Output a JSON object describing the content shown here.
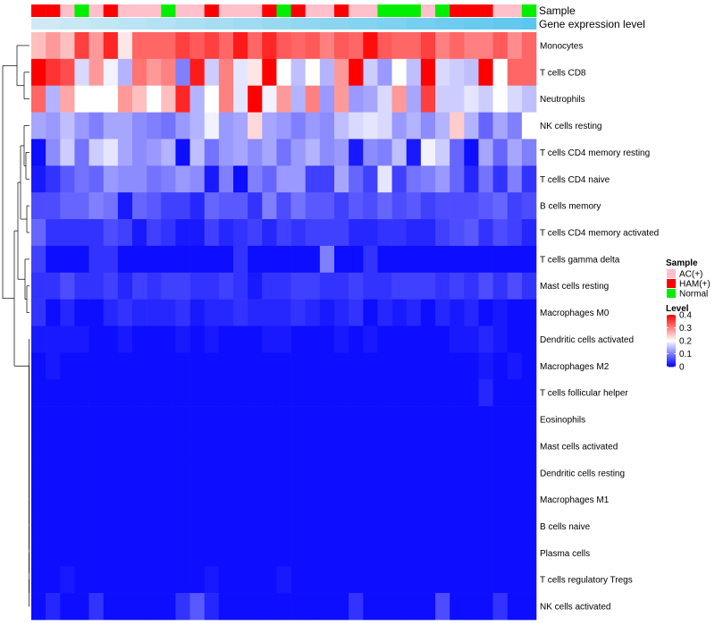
{
  "chart_data": {
    "type": "heatmap",
    "annotation_tracks": [
      "Sample",
      "Gene expression level"
    ],
    "row_labels": [
      "Monocytes",
      "T cells CD8",
      "Neutrophils",
      "NK cells resting",
      "T cells CD4 memory resting",
      "T cells CD4 naive",
      "B cells memory",
      "T cells CD4 memory activated",
      "T cells gamma delta",
      "Mast cells resting",
      "Macrophages M0",
      "Dendritic cells activated",
      "Macrophages M2",
      "T cells follicular helper",
      "Eosinophils",
      "Mast cells activated",
      "Dendritic cells resting",
      "Macrophages M1",
      "B cells naive",
      "Plasma cells",
      "T cells regulatory  Tregs",
      "NK cells activated"
    ],
    "sample_groups": [
      "HAM(+)",
      "HAM(+)",
      "AC(+)",
      "Normal",
      "AC(+)",
      "HAM(+)",
      "AC(+)",
      "AC(+)",
      "AC(+)",
      "Normal",
      "AC(+)",
      "AC(+)",
      "HAM(+)",
      "AC(+)",
      "AC(+)",
      "AC(+)",
      "HAM(+)",
      "Normal",
      "HAM(+)",
      "AC(+)",
      "AC(+)",
      "HAM(+)",
      "AC(+)",
      "AC(+)",
      "Normal",
      "Normal",
      "Normal",
      "AC(+)",
      "Normal",
      "HAM(+)",
      "HAM(+)",
      "HAM(+)",
      "AC(+)",
      "AC(+)",
      "Normal"
    ],
    "gene_expression_level": [
      0.05,
      0.05,
      0.06,
      0.06,
      0.07,
      0.07,
      0.08,
      0.08,
      0.09,
      0.09,
      0.1,
      0.1,
      0.11,
      0.11,
      0.12,
      0.12,
      0.13,
      0.13,
      0.14,
      0.14,
      0.15,
      0.15,
      0.16,
      0.16,
      0.17,
      0.17,
      0.18,
      0.18,
      0.19,
      0.19,
      0.2,
      0.2,
      0.21,
      0.21,
      0.22
    ],
    "values": [
      [
        0.25,
        0.28,
        0.25,
        0.35,
        0.28,
        0.37,
        0.22,
        0.32,
        0.32,
        0.32,
        0.35,
        0.33,
        0.35,
        0.32,
        0.38,
        0.32,
        0.37,
        0.33,
        0.32,
        0.33,
        0.3,
        0.33,
        0.32,
        0.39,
        0.33,
        0.32,
        0.32,
        0.35,
        0.3,
        0.32,
        0.3,
        0.3,
        0.33,
        0.29,
        0.32
      ],
      [
        0.4,
        0.36,
        0.34,
        0.17,
        0.28,
        0.19,
        0.14,
        0.31,
        0.28,
        0.3,
        0.1,
        0.38,
        0.16,
        0.3,
        0.18,
        0.22,
        0.41,
        0.2,
        0.15,
        0.2,
        0.14,
        0.28,
        0.4,
        0.16,
        0.12,
        0.2,
        0.15,
        0.4,
        0.17,
        0.16,
        0.15,
        0.4,
        0.2,
        0.32,
        0.32
      ],
      [
        0.32,
        0.14,
        0.27,
        0.2,
        0.2,
        0.2,
        0.28,
        0.25,
        0.2,
        0.25,
        0.37,
        0.14,
        0.2,
        0.3,
        0.18,
        0.42,
        0.19,
        0.28,
        0.14,
        0.3,
        0.12,
        0.28,
        0.12,
        0.13,
        0.17,
        0.28,
        0.13,
        0.35,
        0.16,
        0.16,
        0.18,
        0.16,
        0.2,
        0.17,
        0.15
      ],
      [
        0.13,
        0.12,
        0.15,
        0.12,
        0.1,
        0.13,
        0.13,
        0.11,
        0.1,
        0.09,
        0.12,
        0.14,
        0.19,
        0.12,
        0.13,
        0.23,
        0.13,
        0.12,
        0.1,
        0.12,
        0.11,
        0.15,
        0.17,
        0.18,
        0.17,
        0.12,
        0.14,
        0.11,
        0.14,
        0.24,
        0.14,
        0.08,
        0.13,
        0.1,
        0.2
      ],
      [
        0.01,
        0.11,
        0.16,
        0.09,
        0.16,
        0.18,
        0.13,
        0.11,
        0.12,
        0.14,
        0.01,
        0.15,
        0.09,
        0.12,
        0.13,
        0.11,
        0.13,
        0.09,
        0.12,
        0.14,
        0.11,
        0.12,
        0.02,
        0.11,
        0.1,
        0.15,
        0.02,
        0.19,
        0.16,
        0.08,
        0.01,
        0.13,
        0.08,
        0.13,
        0.1
      ],
      [
        0.02,
        0.04,
        0.07,
        0.09,
        0.08,
        0.12,
        0.11,
        0.11,
        0.09,
        0.1,
        0.12,
        0.11,
        0.02,
        0.1,
        0.01,
        0.1,
        0.08,
        0.12,
        0.12,
        0.05,
        0.05,
        0.13,
        0.08,
        0.05,
        0.18,
        0.05,
        0.09,
        0.1,
        0.12,
        0.08,
        0.03,
        0.09,
        0.04,
        0.1,
        0.04
      ],
      [
        0.06,
        0.06,
        0.08,
        0.08,
        0.1,
        0.09,
        0.02,
        0.08,
        0.07,
        0.05,
        0.05,
        0.03,
        0.08,
        0.07,
        0.07,
        0.04,
        0.1,
        0.06,
        0.09,
        0.07,
        0.07,
        0.05,
        0.07,
        0.06,
        0.08,
        0.06,
        0.07,
        0.05,
        0.06,
        0.06,
        0.06,
        0.07,
        0.08,
        0.05,
        0.06
      ],
      [
        0.08,
        0.04,
        0.04,
        0.04,
        0.04,
        0.06,
        0.05,
        0.02,
        0.05,
        0.04,
        0.02,
        0.02,
        0.05,
        0.03,
        0.04,
        0.05,
        0.03,
        0.05,
        0.04,
        0.05,
        0.05,
        0.05,
        0.03,
        0.03,
        0.04,
        0.04,
        0.03,
        0.03,
        0.05,
        0.06,
        0.07,
        0.04,
        0.06,
        0.05,
        0.03
      ],
      [
        0.05,
        0.01,
        0.01,
        0.01,
        0.04,
        0.04,
        0.01,
        0.01,
        0.01,
        0.01,
        0.01,
        0.01,
        0.01,
        0.01,
        0.04,
        0.01,
        0.01,
        0.01,
        0.01,
        0.01,
        0.1,
        0.01,
        0.01,
        0.04,
        0.01,
        0.01,
        0.01,
        0.01,
        0.01,
        0.01,
        0.01,
        0.01,
        0.01,
        0.01,
        0.01
      ],
      [
        0.04,
        0.04,
        0.06,
        0.04,
        0.04,
        0.05,
        0.03,
        0.05,
        0.04,
        0.05,
        0.05,
        0.04,
        0.04,
        0.05,
        0.04,
        0.02,
        0.04,
        0.04,
        0.05,
        0.05,
        0.04,
        0.04,
        0.05,
        0.04,
        0.04,
        0.05,
        0.05,
        0.05,
        0.04,
        0.05,
        0.04,
        0.06,
        0.04,
        0.06,
        0.04
      ],
      [
        0.04,
        0.01,
        0.03,
        0.01,
        0.01,
        0.03,
        0.04,
        0.03,
        0.03,
        0.03,
        0.04,
        0.02,
        0.03,
        0.03,
        0.04,
        0.03,
        0.03,
        0.03,
        0.04,
        0.03,
        0.02,
        0.03,
        0.04,
        0.01,
        0.03,
        0.02,
        0.03,
        0.01,
        0.03,
        0.02,
        0.03,
        0.01,
        0.02,
        0.01,
        0.01
      ],
      [
        0.02,
        0.02,
        0.02,
        0.02,
        0.01,
        0.01,
        0.02,
        0.01,
        0.01,
        0.01,
        0.02,
        0.01,
        0.02,
        0.01,
        0.01,
        0.01,
        0.02,
        0.02,
        0.01,
        0.01,
        0.01,
        0.02,
        0.01,
        0.02,
        0.01,
        0.01,
        0.01,
        0.01,
        0.01,
        0.02,
        0.02,
        0.03,
        0.02,
        0.01,
        0.01
      ],
      [
        0.01,
        0.02,
        0.01,
        0.01,
        0.01,
        0.01,
        0.01,
        0.01,
        0.01,
        0.01,
        0.01,
        0.01,
        0.01,
        0.01,
        0.01,
        0.01,
        0.01,
        0.01,
        0.01,
        0.01,
        0.01,
        0.01,
        0.01,
        0.01,
        0.01,
        0.01,
        0.01,
        0.01,
        0.01,
        0.01,
        0.01,
        0.02,
        0.01,
        0.02,
        0.01
      ],
      [
        0.01,
        0.01,
        0.01,
        0.01,
        0.01,
        0.01,
        0.01,
        0.01,
        0.01,
        0.01,
        0.01,
        0.01,
        0.01,
        0.01,
        0.01,
        0.01,
        0.01,
        0.01,
        0.01,
        0.01,
        0.01,
        0.01,
        0.01,
        0.01,
        0.01,
        0.01,
        0.01,
        0.01,
        0.01,
        0.01,
        0.01,
        0.03,
        0.01,
        0.01,
        0.01
      ],
      [
        0.01,
        0.01,
        0.01,
        0.01,
        0.01,
        0.01,
        0.01,
        0.01,
        0.01,
        0.01,
        0.01,
        0.01,
        0.01,
        0.01,
        0.01,
        0.01,
        0.01,
        0.01,
        0.01,
        0.01,
        0.01,
        0.01,
        0.01,
        0.01,
        0.01,
        0.01,
        0.01,
        0.01,
        0.01,
        0.01,
        0.01,
        0.01,
        0.01,
        0.01,
        0.01
      ],
      [
        0.01,
        0.01,
        0.01,
        0.01,
        0.01,
        0.01,
        0.01,
        0.01,
        0.01,
        0.01,
        0.01,
        0.01,
        0.01,
        0.01,
        0.01,
        0.01,
        0.01,
        0.01,
        0.01,
        0.01,
        0.01,
        0.01,
        0.01,
        0.01,
        0.01,
        0.01,
        0.01,
        0.01,
        0.01,
        0.01,
        0.01,
        0.01,
        0.01,
        0.01,
        0.01
      ],
      [
        0.01,
        0.01,
        0.01,
        0.01,
        0.01,
        0.01,
        0.01,
        0.01,
        0.01,
        0.01,
        0.01,
        0.01,
        0.01,
        0.01,
        0.01,
        0.01,
        0.01,
        0.01,
        0.01,
        0.01,
        0.01,
        0.01,
        0.01,
        0.01,
        0.01,
        0.01,
        0.01,
        0.01,
        0.01,
        0.01,
        0.01,
        0.01,
        0.01,
        0.01,
        0.01
      ],
      [
        0.01,
        0.01,
        0.01,
        0.01,
        0.01,
        0.01,
        0.01,
        0.01,
        0.01,
        0.01,
        0.01,
        0.01,
        0.01,
        0.01,
        0.01,
        0.01,
        0.01,
        0.01,
        0.01,
        0.01,
        0.01,
        0.01,
        0.01,
        0.01,
        0.01,
        0.01,
        0.01,
        0.01,
        0.01,
        0.01,
        0.01,
        0.01,
        0.01,
        0.01,
        0.01
      ],
      [
        0.01,
        0.01,
        0.01,
        0.01,
        0.01,
        0.01,
        0.01,
        0.01,
        0.01,
        0.01,
        0.01,
        0.01,
        0.01,
        0.01,
        0.01,
        0.01,
        0.01,
        0.01,
        0.01,
        0.01,
        0.01,
        0.01,
        0.01,
        0.01,
        0.01,
        0.01,
        0.01,
        0.01,
        0.01,
        0.01,
        0.01,
        0.01,
        0.01,
        0.01,
        0.01
      ],
      [
        0.01,
        0.01,
        0.01,
        0.01,
        0.01,
        0.01,
        0.01,
        0.01,
        0.01,
        0.01,
        0.01,
        0.01,
        0.01,
        0.01,
        0.01,
        0.01,
        0.01,
        0.01,
        0.01,
        0.01,
        0.01,
        0.01,
        0.01,
        0.01,
        0.01,
        0.01,
        0.01,
        0.01,
        0.01,
        0.01,
        0.01,
        0.01,
        0.01,
        0.01,
        0.01
      ],
      [
        0.01,
        0.01,
        0.02,
        0.01,
        0.01,
        0.01,
        0.01,
        0.01,
        0.01,
        0.01,
        0.01,
        0.01,
        0.02,
        0.01,
        0.01,
        0.01,
        0.01,
        0.02,
        0.01,
        0.01,
        0.01,
        0.01,
        0.01,
        0.01,
        0.01,
        0.01,
        0.01,
        0.01,
        0.01,
        0.01,
        0.01,
        0.01,
        0.01,
        0.01,
        0.01
      ],
      [
        0.01,
        0.03,
        0.01,
        0.01,
        0.04,
        0.01,
        0.01,
        0.01,
        0.01,
        0.01,
        0.04,
        0.07,
        0.03,
        0.01,
        0.01,
        0.01,
        0.01,
        0.01,
        0.01,
        0.01,
        0.01,
        0.01,
        0.04,
        0.01,
        0.01,
        0.01,
        0.01,
        0.01,
        0.06,
        0.01,
        0.01,
        0.01,
        0.04,
        0.01,
        0.01
      ]
    ],
    "legend": {
      "sample_title": "Sample",
      "sample_entries": [
        {
          "label": "AC(+)",
          "color": "#ffc0cb"
        },
        {
          "label": "HAM(+)",
          "color": "#ff0000"
        },
        {
          "label": "Normal",
          "color": "#00ee00"
        }
      ],
      "level_title": "Level",
      "level_range": [
        0,
        0.4
      ],
      "level_ticks": [
        0.4,
        0.3,
        0.2,
        0.1,
        0
      ],
      "level_tick_labels": [
        "0.4",
        "0.3",
        "0.2",
        "0.1",
        "0"
      ]
    },
    "colors": {
      "low": "#0000ff",
      "mid": "#ffffff",
      "high": "#ff0000",
      "gene_level_low": "#cfeaf5",
      "gene_level_high": "#5bc6ef"
    }
  }
}
